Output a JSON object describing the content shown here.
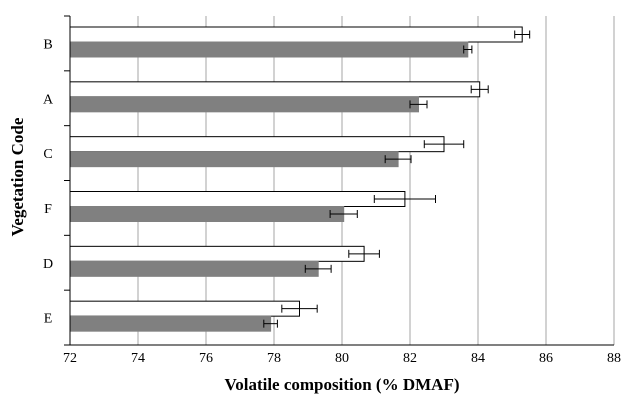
{
  "chart_data": {
    "type": "bar",
    "orientation": "horizontal",
    "xlabel": "Volatile composition (% DMAF)",
    "ylabel": "Vegetation Code",
    "xlim": [
      72,
      88
    ],
    "xticks": [
      72,
      74,
      76,
      78,
      80,
      82,
      84,
      86,
      88
    ],
    "grid": "vertical",
    "legend": "none",
    "categories": [
      "B",
      "A",
      "C",
      "F",
      "D",
      "E"
    ],
    "series": [
      {
        "color": "#ffffff",
        "stroke": "#000000",
        "values": [
          85.3,
          84.05,
          83.0,
          81.85,
          80.65,
          78.75
        ],
        "errors": [
          0.22,
          0.25,
          0.58,
          0.9,
          0.45,
          0.52
        ]
      },
      {
        "color": "#808080",
        "stroke": "#808080",
        "values": [
          83.7,
          82.25,
          81.65,
          80.05,
          79.3,
          77.9
        ],
        "errors": [
          0.12,
          0.25,
          0.38,
          0.4,
          0.38,
          0.2
        ]
      }
    ]
  }
}
